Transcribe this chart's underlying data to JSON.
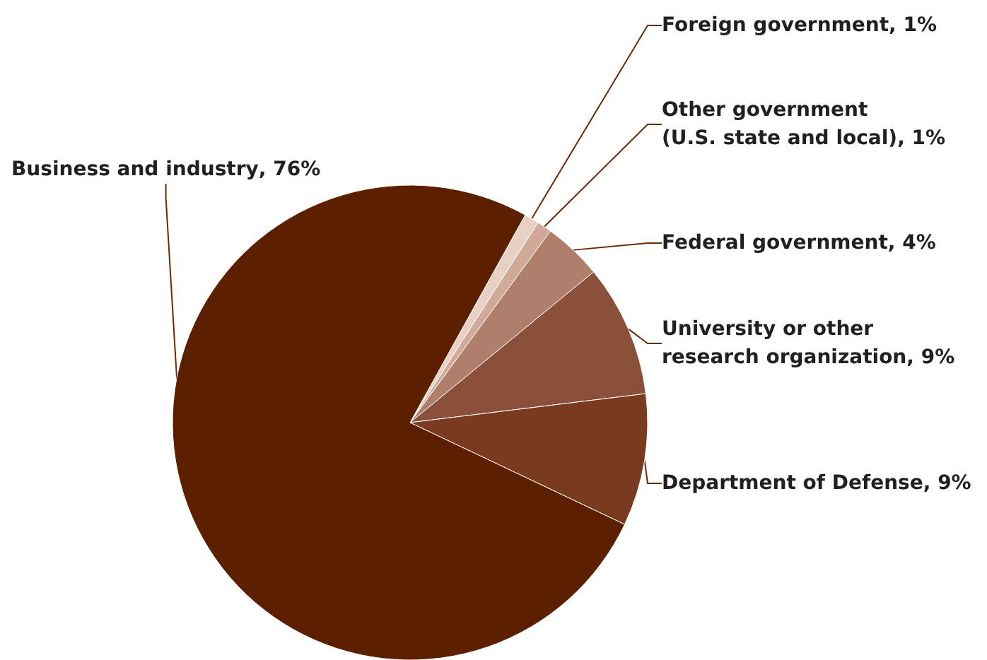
{
  "chart_data": {
    "type": "pie",
    "categories": [
      "Foreign government",
      "Other government\n(U.S. state and local)",
      "Federal government",
      "University or other\nresearch organization",
      "Department of Defense",
      "Business and industry"
    ],
    "values": [
      1,
      1,
      4,
      9,
      9,
      76
    ],
    "colors": [
      "#e8d0c4",
      "#d1a998",
      "#b07f6c",
      "#8a5039",
      "#7a3a20",
      "#5c1f00"
    ],
    "value_labels": [
      ", 1%",
      ", 1%",
      ", 4%",
      ", 9%",
      ", 9%",
      ", 76%"
    ],
    "legend": false
  }
}
